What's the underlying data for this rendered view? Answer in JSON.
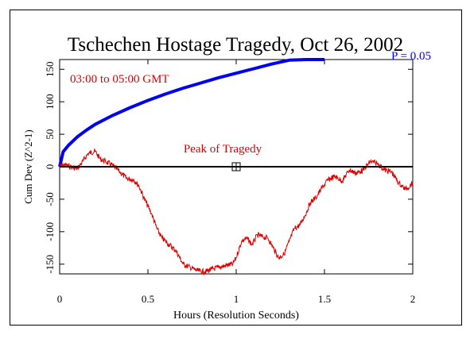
{
  "chart_data": {
    "type": "line",
    "title": "Tschechen Hostage Tragedy, Oct 26, 2002",
    "xlabel": "Hours (Resolution Seconds)",
    "ylabel": "Cum Dev (Z^2-1)",
    "xlim": [
      0,
      2
    ],
    "ylim": [
      -165,
      165
    ],
    "x_ticks": [
      0,
      0.5,
      1,
      1.5,
      2
    ],
    "x_tick_labels": [
      "0",
      "0.5",
      "1",
      "1.5",
      "2"
    ],
    "y_ticks": [
      -150,
      -100,
      -50,
      0,
      50,
      100,
      150
    ],
    "y_tick_labels": [
      "-150",
      "-100",
      "-50",
      "0",
      "50",
      "100",
      "150"
    ],
    "grid": false,
    "legend": "none",
    "annotations": {
      "time_window": "03:00 to 05:00 GMT",
      "peak_label": "Peak of Tragedy",
      "significance_label": "P = 0.05"
    },
    "peak_marker": {
      "x": 1.0,
      "y": 0
    },
    "series": [
      {
        "color": "#0000ee",
        "role": "p005-envelope",
        "x": [
          0,
          0.02,
          0.05,
          0.1,
          0.15,
          0.2,
          0.3,
          0.4,
          0.5,
          0.6,
          0.7,
          0.8,
          0.9,
          1.0,
          1.1,
          1.2,
          1.3,
          1.4,
          1.45,
          1.5
        ],
        "values": [
          0,
          23,
          33,
          46,
          56,
          65,
          79,
          91,
          102,
          112,
          121,
          129,
          137,
          144,
          151,
          158,
          164,
          170,
          173,
          176
        ]
      },
      {
        "color": "#dd0000",
        "role": "cumulative-deviation",
        "x": [
          0,
          0.03,
          0.06,
          0.1,
          0.13,
          0.16,
          0.2,
          0.23,
          0.26,
          0.3,
          0.34,
          0.38,
          0.42,
          0.45,
          0.48,
          0.52,
          0.55,
          0.58,
          0.62,
          0.66,
          0.7,
          0.74,
          0.78,
          0.82,
          0.86,
          0.9,
          0.94,
          0.98,
          1.0,
          1.03,
          1.06,
          1.09,
          1.12,
          1.15,
          1.18,
          1.21,
          1.24,
          1.27,
          1.3,
          1.33,
          1.36,
          1.39,
          1.42,
          1.45,
          1.48,
          1.52,
          1.56,
          1.6,
          1.64,
          1.68,
          1.72,
          1.76,
          1.8,
          1.84,
          1.88,
          1.92,
          1.96,
          2.0
        ],
        "values": [
          0,
          3,
          0,
          -3,
          8,
          20,
          24,
          12,
          8,
          2,
          -8,
          -18,
          -20,
          -30,
          -50,
          -72,
          -95,
          -110,
          -120,
          -130,
          -150,
          -155,
          -160,
          -162,
          -158,
          -155,
          -152,
          -150,
          -140,
          -115,
          -110,
          -120,
          -105,
          -108,
          -110,
          -125,
          -140,
          -135,
          -115,
          -95,
          -90,
          -75,
          -55,
          -48,
          -35,
          -20,
          -15,
          -22,
          -5,
          -10,
          -5,
          8,
          5,
          -5,
          -8,
          -25,
          -35,
          -25
        ]
      }
    ]
  }
}
